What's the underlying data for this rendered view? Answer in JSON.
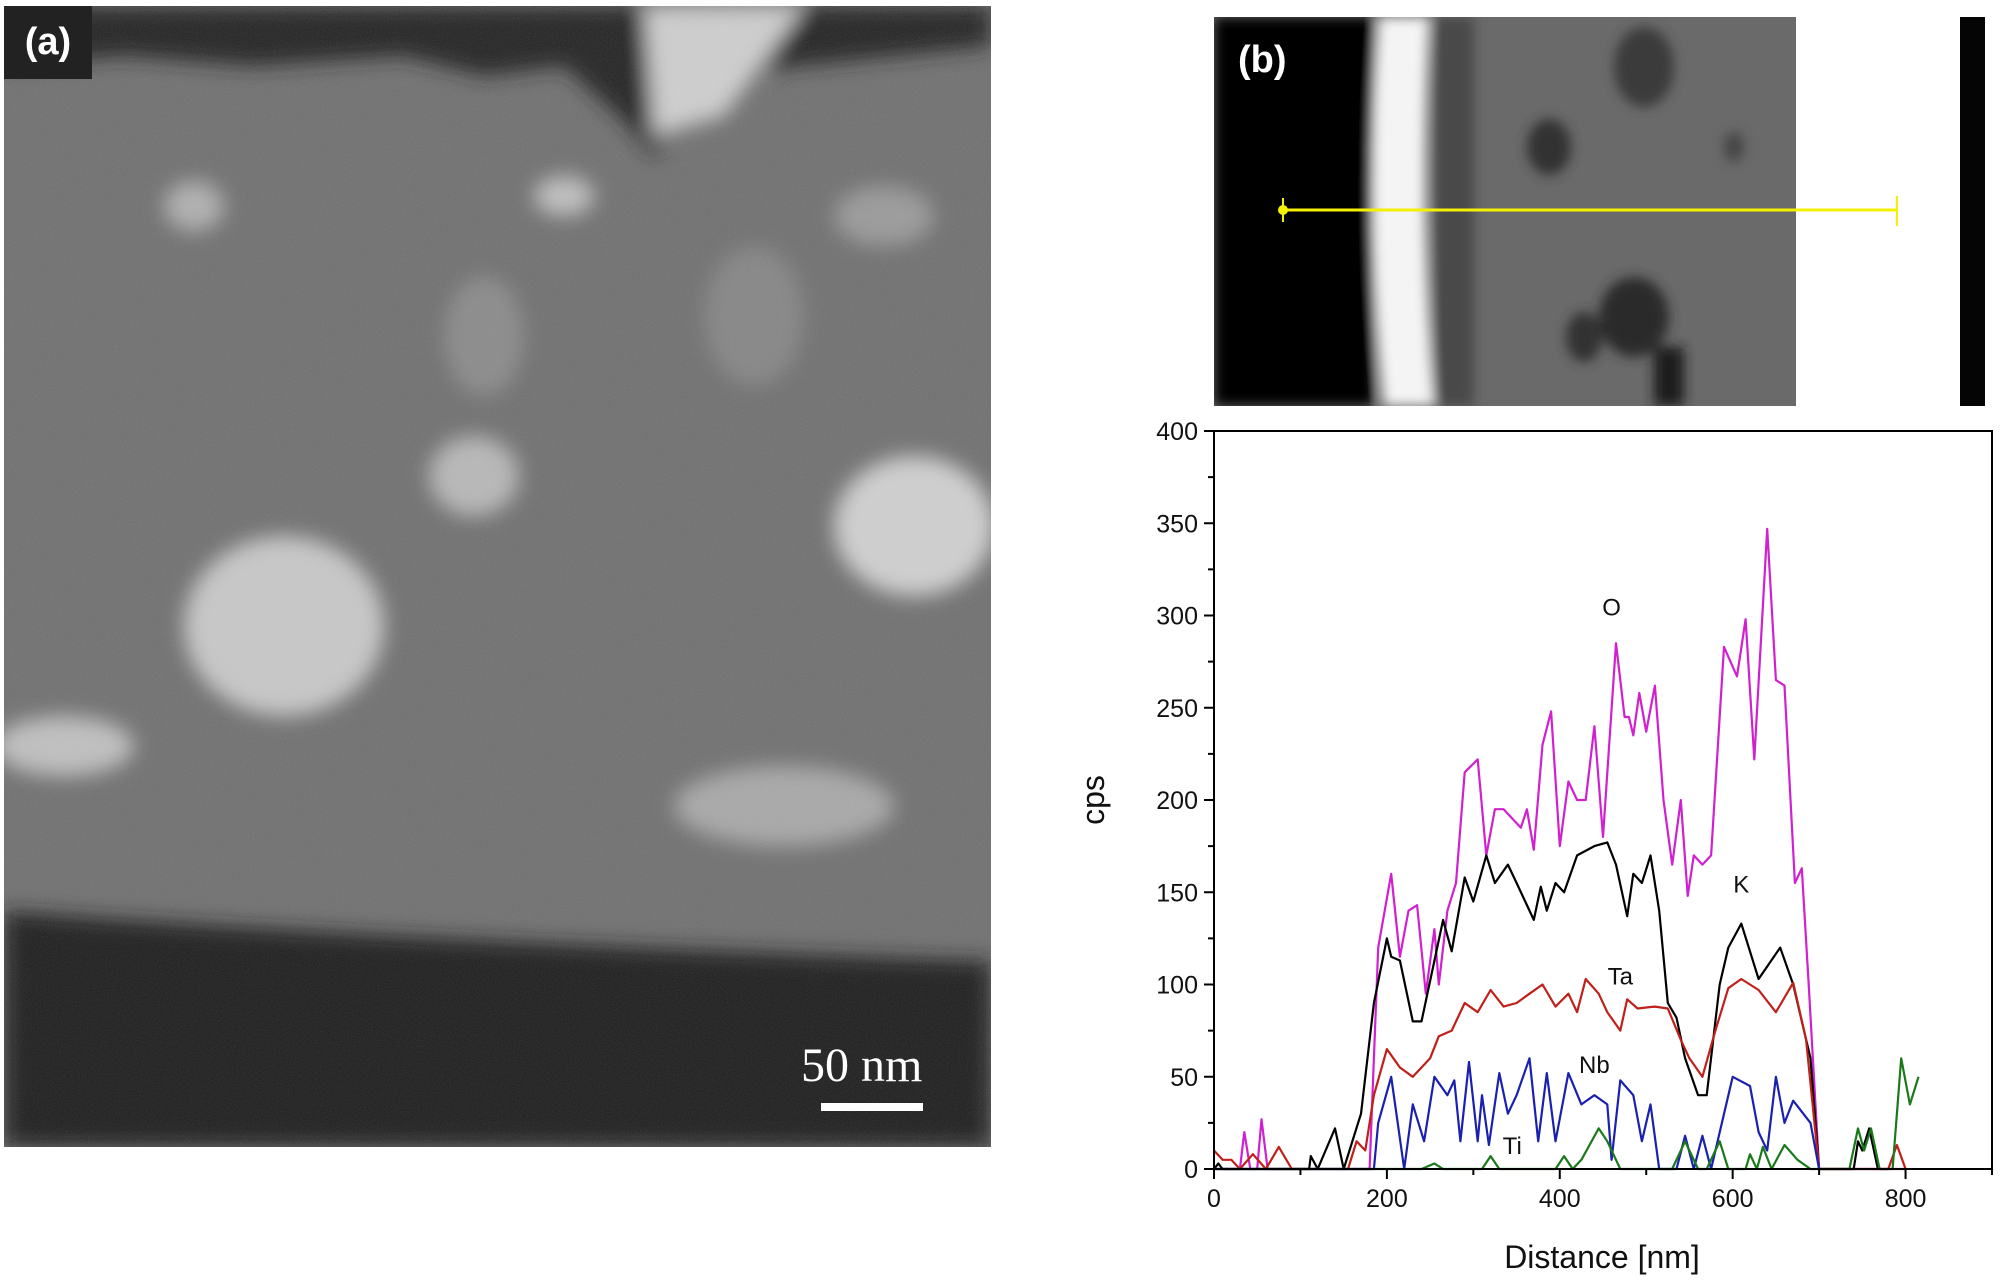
{
  "panel_a": {
    "label": "(a)",
    "scale_bar": "50 nm"
  },
  "panel_b": {
    "label": "(b)",
    "line_color": "#f5f000"
  },
  "chart_data": {
    "type": "line",
    "title": "",
    "xlabel": "Distance [nm]",
    "ylabel": "cps",
    "xlim": [
      0,
      900
    ],
    "ylim": [
      0,
      400
    ],
    "xticks": [
      0,
      200,
      400,
      600,
      800
    ],
    "yticks": [
      0,
      50,
      100,
      150,
      200,
      250,
      300,
      350,
      400
    ],
    "grid": false,
    "series": [
      {
        "name": "O",
        "color": "#d020d0",
        "label_at": [
          460,
          300
        ],
        "points": [
          [
            0,
            0
          ],
          [
            30,
            0
          ],
          [
            35,
            20
          ],
          [
            42,
            0
          ],
          [
            50,
            0
          ],
          [
            55,
            27
          ],
          [
            62,
            0
          ],
          [
            180,
            0
          ],
          [
            190,
            120
          ],
          [
            205,
            160
          ],
          [
            215,
            115
          ],
          [
            225,
            140
          ],
          [
            235,
            143
          ],
          [
            245,
            95
          ],
          [
            255,
            130
          ],
          [
            260,
            100
          ],
          [
            270,
            140
          ],
          [
            280,
            155
          ],
          [
            290,
            215
          ],
          [
            305,
            222
          ],
          [
            315,
            170
          ],
          [
            325,
            195
          ],
          [
            335,
            195
          ],
          [
            345,
            190
          ],
          [
            355,
            185
          ],
          [
            362,
            195
          ],
          [
            370,
            173
          ],
          [
            380,
            230
          ],
          [
            390,
            248
          ],
          [
            400,
            175
          ],
          [
            410,
            210
          ],
          [
            420,
            200
          ],
          [
            430,
            200
          ],
          [
            440,
            240
          ],
          [
            450,
            180
          ],
          [
            465,
            285
          ],
          [
            475,
            245
          ],
          [
            480,
            245
          ],
          [
            485,
            235
          ],
          [
            492,
            258
          ],
          [
            500,
            237
          ],
          [
            510,
            262
          ],
          [
            520,
            200
          ],
          [
            530,
            165
          ],
          [
            540,
            200
          ],
          [
            548,
            148
          ],
          [
            555,
            170
          ],
          [
            565,
            165
          ],
          [
            575,
            170
          ],
          [
            590,
            283
          ],
          [
            605,
            267
          ],
          [
            615,
            298
          ],
          [
            625,
            222
          ],
          [
            640,
            347
          ],
          [
            650,
            265
          ],
          [
            660,
            262
          ],
          [
            672,
            155
          ],
          [
            680,
            163
          ],
          [
            688,
            100
          ],
          [
            700,
            0
          ],
          [
            800,
            0
          ]
        ]
      },
      {
        "name": "K",
        "color": "#000000",
        "label_at": [
          610,
          150
        ],
        "points": [
          [
            0,
            0
          ],
          [
            5,
            3
          ],
          [
            10,
            0
          ],
          [
            110,
            0
          ],
          [
            112,
            7
          ],
          [
            120,
            0
          ],
          [
            140,
            22
          ],
          [
            150,
            0
          ],
          [
            170,
            30
          ],
          [
            185,
            90
          ],
          [
            200,
            125
          ],
          [
            205,
            115
          ],
          [
            215,
            113
          ],
          [
            230,
            80
          ],
          [
            240,
            80
          ],
          [
            265,
            135
          ],
          [
            275,
            118
          ],
          [
            290,
            158
          ],
          [
            300,
            145
          ],
          [
            315,
            170
          ],
          [
            325,
            155
          ],
          [
            340,
            165
          ],
          [
            350,
            155
          ],
          [
            370,
            135
          ],
          [
            378,
            153
          ],
          [
            385,
            140
          ],
          [
            395,
            155
          ],
          [
            405,
            150
          ],
          [
            420,
            170
          ],
          [
            440,
            175
          ],
          [
            455,
            177
          ],
          [
            465,
            165
          ],
          [
            478,
            137
          ],
          [
            485,
            160
          ],
          [
            495,
            155
          ],
          [
            505,
            170
          ],
          [
            515,
            140
          ],
          [
            525,
            90
          ],
          [
            535,
            82
          ],
          [
            545,
            60
          ],
          [
            560,
            40
          ],
          [
            570,
            40
          ],
          [
            585,
            100
          ],
          [
            595,
            120
          ],
          [
            610,
            133
          ],
          [
            630,
            103
          ],
          [
            655,
            120
          ],
          [
            670,
            100
          ],
          [
            690,
            60
          ],
          [
            700,
            0
          ],
          [
            740,
            0
          ],
          [
            745,
            15
          ],
          [
            750,
            10
          ],
          [
            758,
            22
          ],
          [
            768,
            0
          ]
        ]
      },
      {
        "name": "Ta",
        "color": "#c0201a",
        "label_at": [
          470,
          100
        ],
        "points": [
          [
            0,
            10
          ],
          [
            10,
            5
          ],
          [
            20,
            5
          ],
          [
            30,
            0
          ],
          [
            45,
            8
          ],
          [
            60,
            0
          ],
          [
            75,
            12
          ],
          [
            90,
            0
          ],
          [
            155,
            0
          ],
          [
            165,
            15
          ],
          [
            175,
            10
          ],
          [
            185,
            40
          ],
          [
            200,
            65
          ],
          [
            215,
            55
          ],
          [
            230,
            50
          ],
          [
            240,
            55
          ],
          [
            250,
            60
          ],
          [
            260,
            72
          ],
          [
            275,
            75
          ],
          [
            290,
            90
          ],
          [
            305,
            85
          ],
          [
            320,
            97
          ],
          [
            335,
            88
          ],
          [
            350,
            90
          ],
          [
            365,
            95
          ],
          [
            380,
            100
          ],
          [
            395,
            88
          ],
          [
            410,
            95
          ],
          [
            420,
            85
          ],
          [
            430,
            103
          ],
          [
            445,
            95
          ],
          [
            455,
            85
          ],
          [
            470,
            75
          ],
          [
            478,
            92
          ],
          [
            490,
            87
          ],
          [
            510,
            88
          ],
          [
            525,
            87
          ],
          [
            540,
            70
          ],
          [
            550,
            60
          ],
          [
            565,
            50
          ],
          [
            580,
            75
          ],
          [
            595,
            98
          ],
          [
            610,
            103
          ],
          [
            630,
            97
          ],
          [
            650,
            85
          ],
          [
            670,
            101
          ],
          [
            685,
            70
          ],
          [
            700,
            0
          ],
          [
            780,
            0
          ],
          [
            790,
            13
          ],
          [
            800,
            0
          ]
        ]
      },
      {
        "name": "Nb",
        "color": "#1a20b0",
        "label_at": [
          440,
          52
        ],
        "points": [
          [
            0,
            0
          ],
          [
            185,
            0
          ],
          [
            190,
            25
          ],
          [
            205,
            50
          ],
          [
            220,
            0
          ],
          [
            230,
            35
          ],
          [
            243,
            15
          ],
          [
            255,
            50
          ],
          [
            270,
            40
          ],
          [
            278,
            48
          ],
          [
            285,
            15
          ],
          [
            295,
            58
          ],
          [
            305,
            15
          ],
          [
            310,
            40
          ],
          [
            318,
            13
          ],
          [
            330,
            52
          ],
          [
            340,
            30
          ],
          [
            350,
            40
          ],
          [
            365,
            60
          ],
          [
            375,
            15
          ],
          [
            385,
            52
          ],
          [
            395,
            15
          ],
          [
            410,
            52
          ],
          [
            425,
            35
          ],
          [
            440,
            40
          ],
          [
            455,
            35
          ],
          [
            460,
            5
          ],
          [
            470,
            48
          ],
          [
            485,
            40
          ],
          [
            495,
            15
          ],
          [
            505,
            35
          ],
          [
            515,
            0
          ],
          [
            535,
            0
          ],
          [
            545,
            18
          ],
          [
            555,
            0
          ],
          [
            565,
            18
          ],
          [
            575,
            0
          ],
          [
            600,
            50
          ],
          [
            620,
            45
          ],
          [
            630,
            20
          ],
          [
            640,
            10
          ],
          [
            650,
            50
          ],
          [
            660,
            25
          ],
          [
            670,
            37
          ],
          [
            690,
            25
          ],
          [
            700,
            0
          ]
        ]
      },
      {
        "name": "Ti",
        "color": "#1a7a1a",
        "label_at": [
          345,
          8
        ],
        "points": [
          [
            0,
            0
          ],
          [
            240,
            0
          ],
          [
            255,
            3
          ],
          [
            265,
            0
          ],
          [
            310,
            0
          ],
          [
            320,
            7
          ],
          [
            330,
            0
          ],
          [
            395,
            0
          ],
          [
            405,
            7
          ],
          [
            415,
            0
          ],
          [
            425,
            5
          ],
          [
            445,
            22
          ],
          [
            455,
            15
          ],
          [
            470,
            0
          ],
          [
            530,
            0
          ],
          [
            545,
            15
          ],
          [
            560,
            0
          ],
          [
            570,
            0
          ],
          [
            585,
            15
          ],
          [
            595,
            0
          ],
          [
            615,
            0
          ],
          [
            620,
            8
          ],
          [
            628,
            0
          ],
          [
            635,
            12
          ],
          [
            645,
            0
          ],
          [
            660,
            13
          ],
          [
            675,
            5
          ],
          [
            690,
            0
          ],
          [
            735,
            0
          ],
          [
            745,
            22
          ],
          [
            752,
            10
          ],
          [
            760,
            22
          ],
          [
            770,
            0
          ],
          [
            785,
            0
          ],
          [
            795,
            60
          ],
          [
            805,
            35
          ],
          [
            815,
            50
          ]
        ]
      }
    ]
  }
}
